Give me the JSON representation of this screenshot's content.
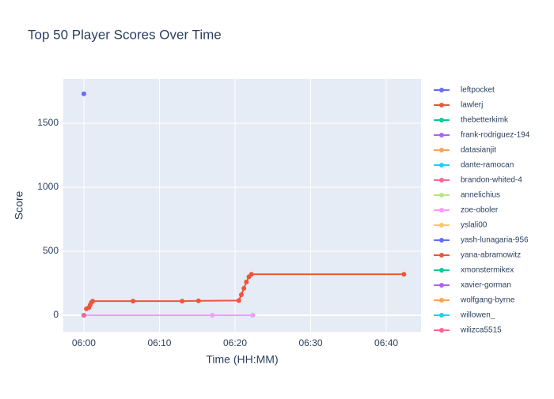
{
  "chart_data": {
    "type": "line",
    "title": "Top 50 Player Scores Over Time",
    "x_label": "Time (HH:MM)",
    "y_label": "Score",
    "xlim": [
      "05:57:17",
      "06:44:36"
    ],
    "xticks": [
      "06:00",
      "06:10",
      "06:20",
      "06:30",
      "06:40"
    ],
    "ylim": [
      -130,
      1846
    ],
    "yticks": [
      0,
      500,
      1000,
      1500
    ],
    "grid": true,
    "legend": "right",
    "series": [
      {
        "name": "leftpocket",
        "color": "#636efa",
        "x": [
          "06:00:00"
        ],
        "values": [
          1730
        ]
      },
      {
        "name": "lawlerj",
        "color": "#ef553b",
        "x": [
          "06:00:20",
          "06:00:40",
          "06:00:50",
          "06:01:00",
          "06:01:10",
          "06:06:30",
          "06:13:00",
          "06:15:10",
          "06:20:30",
          "06:20:50",
          "06:21:10",
          "06:21:30",
          "06:21:50",
          "06:22:10",
          "06:42:20"
        ],
        "values": [
          50,
          60,
          80,
          100,
          110,
          110,
          110,
          112,
          115,
          160,
          210,
          260,
          300,
          320,
          320
        ]
      },
      {
        "name": "thebetterkimk",
        "color": "#00cc96",
        "x": [
          "06:00:00"
        ],
        "values": [
          0
        ]
      },
      {
        "name": "frank-rodriguez-194",
        "color": "#ab63fa",
        "x": [
          "06:00:00"
        ],
        "values": [
          0
        ]
      },
      {
        "name": "datasianjit",
        "color": "#ffa15a",
        "x": [
          "06:00:00"
        ],
        "values": [
          0
        ]
      },
      {
        "name": "dante-ramocan",
        "color": "#19d3f3",
        "x": [
          "06:00:00"
        ],
        "values": [
          0
        ]
      },
      {
        "name": "brandon-whited-4",
        "color": "#ff6692",
        "x": [
          "06:00:00"
        ],
        "values": [
          0
        ]
      },
      {
        "name": "annelichius",
        "color": "#b6e880",
        "x": [
          "06:00:00"
        ],
        "values": [
          0
        ]
      },
      {
        "name": "zoe-oboler",
        "color": "#ff97ff",
        "x": [
          "06:00:00",
          "06:17:00",
          "06:22:20"
        ],
        "values": [
          0,
          0,
          0
        ]
      },
      {
        "name": "yslali00",
        "color": "#fecb52",
        "x": [
          "06:00:00"
        ],
        "values": [
          0
        ]
      },
      {
        "name": "yash-lunagaria-956",
        "color": "#636efa",
        "x": [
          "06:00:00"
        ],
        "values": [
          0
        ]
      },
      {
        "name": "yana-abramowitz",
        "color": "#ef553b",
        "x": [
          "06:00:00"
        ],
        "values": [
          0
        ]
      },
      {
        "name": "xmonstermikex",
        "color": "#00cc96",
        "x": [
          "06:00:00"
        ],
        "values": [
          0
        ]
      },
      {
        "name": "xavier-gorman",
        "color": "#ab63fa",
        "x": [
          "06:00:00"
        ],
        "values": [
          0
        ]
      },
      {
        "name": "wolfgang-byrne",
        "color": "#ffa15a",
        "x": [
          "06:00:00"
        ],
        "values": [
          0
        ]
      },
      {
        "name": "willowen_",
        "color": "#19d3f3",
        "x": [
          "06:00:00"
        ],
        "values": [
          0
        ]
      },
      {
        "name": "wilizca5515",
        "color": "#ff6692",
        "x": [
          "06:00:00"
        ],
        "values": [
          0
        ]
      }
    ]
  }
}
